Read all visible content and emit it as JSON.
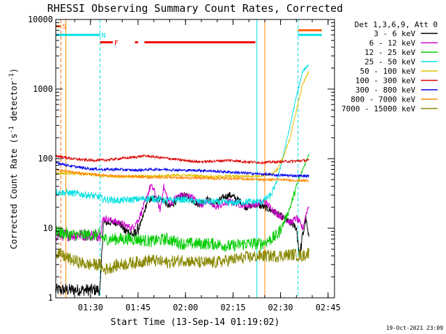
{
  "chart_data": {
    "type": "line",
    "title": "RHESSI Observing Summary Count Rates, Corrected",
    "xlabel": "Start Time (13-Sep-14 01:19:02)",
    "ylabel": "Corrected Count Rate (s⁻¹ detector⁻¹)",
    "ylabel_main": "Corrected Count Rate (s",
    "ylabel_sup1": "-1",
    "ylabel_mid": " detector",
    "ylabel_sup2": "-1",
    "ylabel_end": ")",
    "yscale": "log",
    "ylim": [
      1,
      10000
    ],
    "xlim_minutes": [
      0,
      88
    ],
    "ytick_labels": [
      "1",
      "10",
      "100",
      "1000",
      "10000"
    ],
    "xticks": [
      {
        "label": "01:30",
        "t": 10.97
      },
      {
        "label": "01:45",
        "t": 25.97
      },
      {
        "label": "02:00",
        "t": 40.97
      },
      {
        "label": "02:15",
        "t": 55.97
      },
      {
        "label": "02:30",
        "t": 70.97
      },
      {
        "label": "02:45",
        "t": 85.97
      }
    ],
    "legend_title": "Det 1,3,6,9, Att 0",
    "legend_location": "right-outside",
    "series": [
      {
        "name": "3 - 6 keV",
        "color": "#000000",
        "points": [
          [
            0,
            1.3
          ],
          [
            14,
            1.3
          ],
          [
            15,
            12
          ],
          [
            20,
            12
          ],
          [
            22,
            9
          ],
          [
            25,
            8
          ],
          [
            27,
            12
          ],
          [
            29,
            25
          ],
          [
            32,
            28
          ],
          [
            34,
            25
          ],
          [
            36,
            20
          ],
          [
            38,
            25
          ],
          [
            40,
            30
          ],
          [
            42,
            28
          ],
          [
            45,
            22
          ],
          [
            48,
            26
          ],
          [
            50,
            22
          ],
          [
            53,
            28
          ],
          [
            55,
            30
          ],
          [
            58,
            25
          ],
          [
            60,
            20
          ],
          [
            63,
            22
          ],
          [
            66,
            20
          ],
          [
            70,
            16
          ],
          [
            72,
            14
          ],
          [
            74,
            12
          ],
          [
            76,
            10
          ],
          [
            77,
            4
          ],
          [
            78,
            8
          ],
          [
            79,
            14
          ],
          [
            80,
            6
          ]
        ]
      },
      {
        "name": "6 - 12 keV",
        "color": "#cc00cc",
        "points": [
          [
            0,
            8
          ],
          [
            14,
            8
          ],
          [
            15,
            14
          ],
          [
            20,
            12
          ],
          [
            24,
            10
          ],
          [
            26,
            13
          ],
          [
            28,
            22
          ],
          [
            30,
            42
          ],
          [
            31,
            35
          ],
          [
            33,
            18
          ],
          [
            34,
            40
          ],
          [
            36,
            22
          ],
          [
            38,
            28
          ],
          [
            40,
            30
          ],
          [
            43,
            28
          ],
          [
            46,
            22
          ],
          [
            48,
            25
          ],
          [
            50,
            20
          ],
          [
            53,
            22
          ],
          [
            55,
            24
          ],
          [
            58,
            22
          ],
          [
            60,
            21
          ],
          [
            63,
            22
          ],
          [
            66,
            24
          ],
          [
            70,
            16
          ],
          [
            72,
            14
          ],
          [
            74,
            12
          ],
          [
            76,
            14
          ],
          [
            78,
            10
          ],
          [
            79,
            16
          ],
          [
            80,
            22
          ]
        ]
      },
      {
        "name": "12 - 25 keV",
        "color": "#00cc00",
        "points": [
          [
            0,
            9
          ],
          [
            5,
            8
          ],
          [
            14,
            8
          ],
          [
            15,
            7
          ],
          [
            20,
            7
          ],
          [
            25,
            7
          ],
          [
            30,
            6.5
          ],
          [
            35,
            7
          ],
          [
            40,
            6
          ],
          [
            45,
            6
          ],
          [
            50,
            6
          ],
          [
            55,
            5.5
          ],
          [
            60,
            6
          ],
          [
            65,
            6
          ],
          [
            68,
            7
          ],
          [
            70,
            8
          ],
          [
            72,
            12
          ],
          [
            74,
            20
          ],
          [
            76,
            40
          ],
          [
            78,
            70
          ],
          [
            80,
            120
          ]
        ]
      },
      {
        "name": "25 - 50 keV",
        "color": "#00e0e0",
        "points": [
          [
            0,
            33
          ],
          [
            5,
            32
          ],
          [
            10,
            30
          ],
          [
            14,
            28
          ],
          [
            15,
            26
          ],
          [
            20,
            25
          ],
          [
            25,
            26
          ],
          [
            30,
            27
          ],
          [
            35,
            25
          ],
          [
            40,
            26
          ],
          [
            45,
            24
          ],
          [
            50,
            24
          ],
          [
            55,
            23
          ],
          [
            60,
            24
          ],
          [
            65,
            24
          ],
          [
            68,
            30
          ],
          [
            70,
            50
          ],
          [
            72,
            120
          ],
          [
            74,
            300
          ],
          [
            76,
            800
          ],
          [
            78,
            1800
          ],
          [
            80,
            2300
          ]
        ]
      },
      {
        "name": "50 - 100 keV",
        "color": "#e0c000",
        "points": [
          [
            0,
            62
          ],
          [
            10,
            60
          ],
          [
            15,
            56
          ],
          [
            20,
            55
          ],
          [
            25,
            56
          ],
          [
            30,
            56
          ],
          [
            35,
            57
          ],
          [
            40,
            58
          ],
          [
            45,
            57
          ],
          [
            50,
            55
          ],
          [
            55,
            56
          ],
          [
            60,
            56
          ],
          [
            65,
            56
          ],
          [
            68,
            60
          ],
          [
            70,
            70
          ],
          [
            72,
            110
          ],
          [
            74,
            200
          ],
          [
            76,
            500
          ],
          [
            78,
            1200
          ],
          [
            80,
            1800
          ]
        ]
      },
      {
        "name": "100 - 300 keV",
        "color": "#dd0000",
        "points": [
          [
            0,
            110
          ],
          [
            5,
            100
          ],
          [
            10,
            95
          ],
          [
            15,
            95
          ],
          [
            20,
            100
          ],
          [
            25,
            105
          ],
          [
            28,
            110
          ],
          [
            32,
            105
          ],
          [
            36,
            100
          ],
          [
            40,
            95
          ],
          [
            45,
            90
          ],
          [
            50,
            92
          ],
          [
            55,
            95
          ],
          [
            60,
            90
          ],
          [
            65,
            88
          ],
          [
            70,
            90
          ],
          [
            75,
            92
          ],
          [
            80,
            95
          ]
        ]
      },
      {
        "name": "300 - 800 keV",
        "color": "#0000ee",
        "points": [
          [
            0,
            88
          ],
          [
            5,
            78
          ],
          [
            10,
            72
          ],
          [
            15,
            70
          ],
          [
            20,
            70
          ],
          [
            25,
            68
          ],
          [
            30,
            70
          ],
          [
            35,
            70
          ],
          [
            40,
            68
          ],
          [
            45,
            68
          ],
          [
            50,
            66
          ],
          [
            55,
            64
          ],
          [
            60,
            62
          ],
          [
            65,
            60
          ],
          [
            70,
            58
          ],
          [
            75,
            57
          ],
          [
            80,
            56
          ]
        ]
      },
      {
        "name": "800 - 7000 keV",
        "color": "#ff8800",
        "points": [
          [
            0,
            70
          ],
          [
            5,
            64
          ],
          [
            10,
            60
          ],
          [
            15,
            58
          ],
          [
            20,
            56
          ],
          [
            25,
            55
          ],
          [
            30,
            54
          ],
          [
            35,
            54
          ],
          [
            40,
            53
          ],
          [
            45,
            53
          ],
          [
            50,
            52
          ],
          [
            55,
            52
          ],
          [
            60,
            51
          ],
          [
            65,
            50
          ],
          [
            70,
            50
          ],
          [
            75,
            49
          ],
          [
            80,
            48
          ]
        ]
      },
      {
        "name": "7000 - 15000 keV",
        "color": "#888800",
        "points": [
          [
            0,
            4.5
          ],
          [
            5,
            3.5
          ],
          [
            10,
            3
          ],
          [
            14,
            3
          ],
          [
            15,
            2.5
          ],
          [
            20,
            3
          ],
          [
            25,
            3.2
          ],
          [
            30,
            3.5
          ],
          [
            35,
            3.2
          ],
          [
            40,
            3.5
          ],
          [
            45,
            3.2
          ],
          [
            50,
            3.2
          ],
          [
            55,
            3.5
          ],
          [
            60,
            3.8
          ],
          [
            65,
            4
          ],
          [
            70,
            4
          ],
          [
            75,
            4.2
          ],
          [
            78,
            4
          ],
          [
            80,
            4.5
          ]
        ]
      }
    ],
    "flag_bars": [
      {
        "label": "S",
        "color": "#ff6600",
        "t0": 0,
        "t1": 1.6,
        "level": 8000
      },
      {
        "label": "N",
        "color": "#00e0e0",
        "t0": 0,
        "t1": 14,
        "level": 6000
      },
      {
        "label": "F",
        "color": "#ee0000",
        "t0": 14,
        "t1": 18,
        "level": 4700
      },
      {
        "label": "",
        "color": "#ee0000",
        "t0": 25,
        "t1": 26,
        "level": 4700
      },
      {
        "label": "",
        "color": "#ee0000",
        "t0": 28,
        "t1": 63,
        "level": 4700
      },
      {
        "label": "",
        "color": "#00e0e0",
        "t0": 76.5,
        "t1": 84,
        "level": 6000
      },
      {
        "label": "",
        "color": "#ff6600",
        "t0": 76.5,
        "t1": 84,
        "level": 7000
      }
    ],
    "vlines": [
      {
        "t": 0,
        "color": "#00e0e0",
        "style": "solid"
      },
      {
        "t": 1.6,
        "color": "#ff6600",
        "style": "dash"
      },
      {
        "t": 3.2,
        "color": "#ff8800",
        "style": "solid"
      },
      {
        "t": 14,
        "color": "#00e0e0",
        "style": "dash"
      },
      {
        "t": 63.5,
        "color": "#00e0e0",
        "style": "solid"
      },
      {
        "t": 66,
        "color": "#ff8800",
        "style": "solid"
      },
      {
        "t": 76.5,
        "color": "#00e0e0",
        "style": "dash"
      }
    ],
    "footer": "19-Oct-2021 23:09"
  }
}
